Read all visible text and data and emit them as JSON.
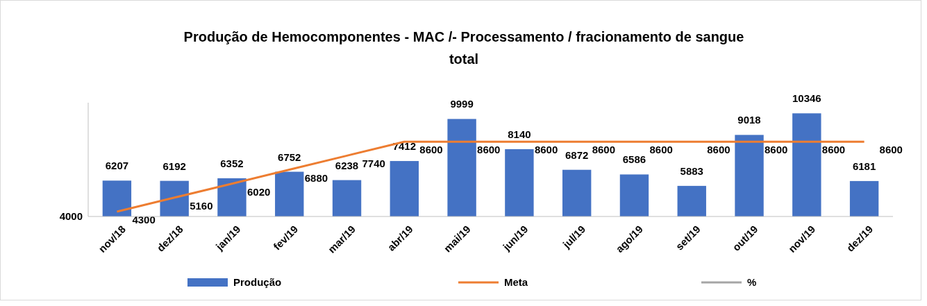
{
  "chart_data": {
    "type": "bar",
    "title": "Produção de Hemocomponentes - MAC /- Processamento / fracionamento de sangue total",
    "categories": [
      "nov/18",
      "dez/18",
      "jan/19",
      "fev/19",
      "mar/19",
      "abr/19",
      "mai/19",
      "jun/19",
      "jul/19",
      "ago/19",
      "set/19",
      "out/19",
      "nov/19",
      "dez/19"
    ],
    "series": [
      {
        "name": "Produção",
        "color": "#4472c4",
        "values": [
          6207,
          6192,
          6352,
          6752,
          6238,
          7412,
          9999,
          8140,
          6872,
          6586,
          5883,
          9018,
          10346,
          6181
        ]
      },
      {
        "name": "Meta",
        "type": "line",
        "color": "#ed7d31",
        "values": [
          4300,
          5160,
          6020,
          6880,
          7740,
          8600,
          8600,
          8600,
          8600,
          8600,
          8600,
          8600,
          8600,
          8600
        ]
      },
      {
        "name": "%",
        "type": "line",
        "color": "#a5a5a5",
        "values": [
          null,
          null,
          null,
          null,
          null,
          null,
          null,
          null,
          null,
          null,
          null,
          null,
          null,
          null
        ]
      }
    ],
    "ylim": [
      4000,
      11000
    ],
    "annotations": [
      "4000"
    ],
    "data_labels": true,
    "legend": "bottom",
    "marker": "none"
  }
}
